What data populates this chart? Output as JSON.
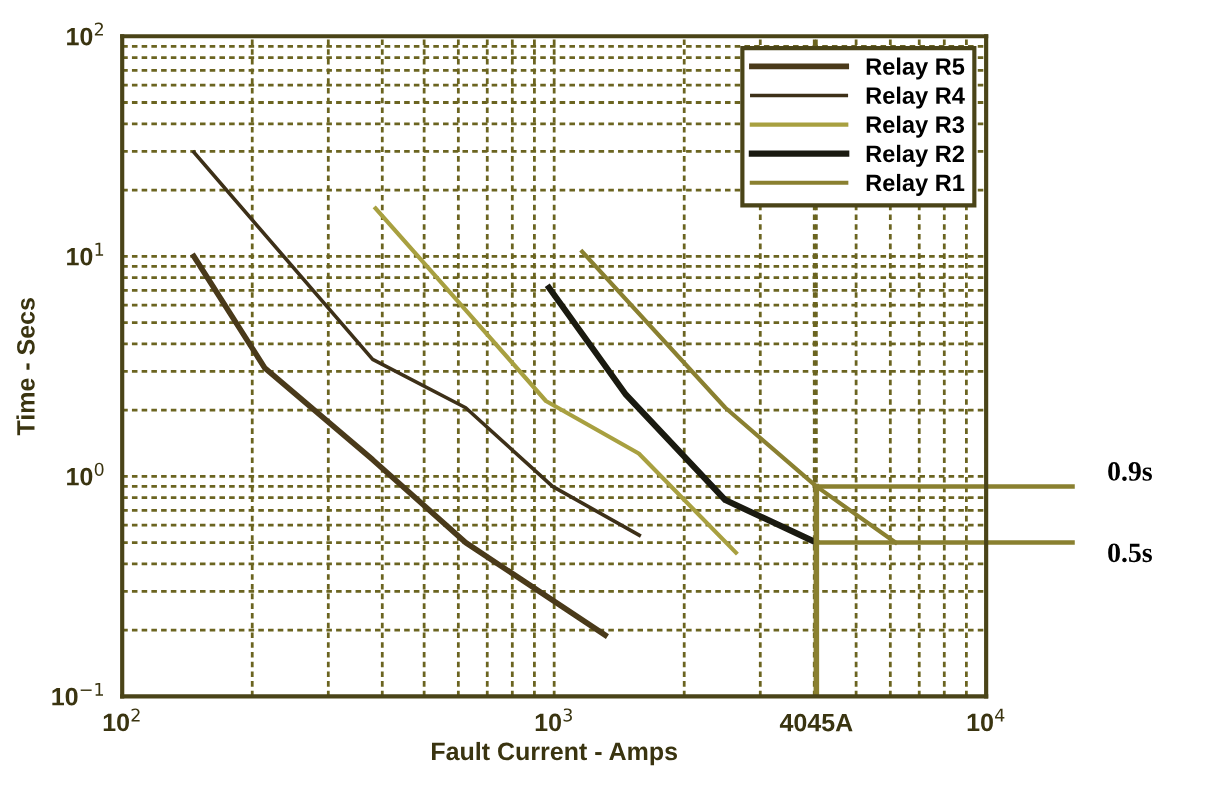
{
  "chart_data": {
    "type": "line",
    "xlabel": "Fault Current - Amps",
    "ylabel": "Time - Secs",
    "log": "xy",
    "xlim": [
      100,
      10000
    ],
    "ylim": [
      0.1,
      100
    ],
    "xticks": [
      {
        "value": 100,
        "label": "10$^{2}$"
      },
      {
        "value": 1000,
        "label": "10$^{3}$"
      },
      {
        "value": 10000,
        "label": "10$^{4}$"
      }
    ],
    "yticks": [
      {
        "value": 0.1,
        "label": "10$^{−1}$"
      },
      {
        "value": 1,
        "label": "10$^{0}$"
      },
      {
        "value": 10,
        "label": "10$^{1}$"
      },
      {
        "value": 100,
        "label": "10$^{2}$"
      }
    ],
    "grid": true,
    "legend": "top right",
    "line_style": "solid",
    "series": [
      {
        "name": "Relay R5",
        "color": "#4a3a1a",
        "x": [
          146.5,
          214,
          380,
          624,
          1312
        ],
        "values": [
          10,
          3.1,
          1.19,
          0.5,
          0.19
        ]
      },
      {
        "name": "Relay R4",
        "color": "#3d3018",
        "x": [
          146.5,
          380,
          624,
          991,
          1574
        ],
        "values": [
          29.7,
          3.4,
          2.05,
          0.9,
          0.54
        ]
      },
      {
        "name": "Relay R3",
        "color": "#a8a040",
        "x": [
          386,
          624,
          957,
          1570,
          2635
        ],
        "values": [
          16.5,
          5.7,
          2.2,
          1.27,
          0.45
        ]
      },
      {
        "name": "Relay R2",
        "color": "#1a1a10",
        "x": [
          973,
          1466,
          2490,
          4045
        ],
        "values": [
          7.2,
          2.35,
          0.78,
          0.5
        ]
      },
      {
        "name": "Relay R1",
        "color": "#8a8030",
        "x": [
          1161,
          2490,
          4045,
          6170
        ],
        "values": [
          10.5,
          2.05,
          0.9,
          0.5
        ]
      }
    ],
    "ref_lines": [
      {
        "axis": "x",
        "value": 4045,
        "label": "4045A",
        "color": "#8a8030"
      },
      {
        "axis": "y",
        "value": 0.9,
        "label": "0.9s",
        "color": "#8a8030"
      },
      {
        "axis": "y",
        "value": 0.5,
        "label": "0.5s",
        "color": "#8a8030"
      }
    ]
  }
}
